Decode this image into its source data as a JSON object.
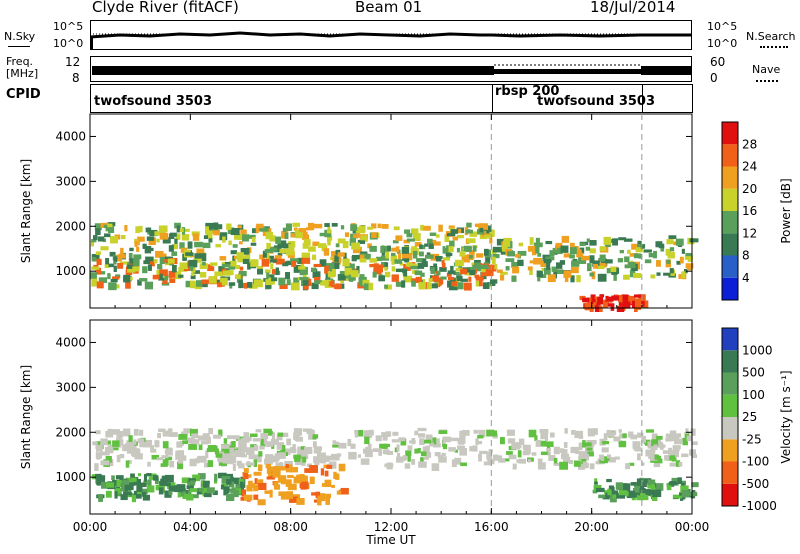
{
  "header": {
    "station": "Clyde River (fitACF)",
    "beam": "Beam 01",
    "date": "18/Jul/2014"
  },
  "strip_labels": {
    "nsky": "N.Sky",
    "nsky_ticks": [
      "10^5",
      "10^0"
    ],
    "nsearch": "N.Search",
    "nsearch_ticks": [
      "10^5",
      "10^0"
    ],
    "freq_line1": "Freq.",
    "freq_line2": "[MHz]",
    "freq_ticks": [
      "12",
      "8"
    ],
    "nave": "Nave",
    "nave_ticks": [
      "60",
      "0"
    ],
    "cpid": "CPID"
  },
  "cpid_segments": [
    {
      "name": "twofsound 3503",
      "start_hour": 0,
      "end_hour": 16
    },
    {
      "name": "rbsp 200",
      "start_hour": 16,
      "end_hour": 22
    },
    {
      "name": "twofsound 3503",
      "start_hour": 16,
      "end_hour": 22
    }
  ],
  "chart_data": [
    {
      "type": "heatmap",
      "name": "Power",
      "ylabel": "Slant Range [km]",
      "xlabel": "Time UT",
      "x_ticks": [
        "00:00",
        "04:00",
        "08:00",
        "12:00",
        "16:00",
        "20:00",
        "00:00"
      ],
      "xlim_hours": [
        0,
        24
      ],
      "y_ticks": [
        1000,
        2000,
        3000,
        4000
      ],
      "ylim": [
        180,
        4500
      ],
      "colorbar": {
        "label": "Power [dB]",
        "ticks": [
          "4",
          "8",
          "12",
          "16",
          "20",
          "24",
          "28"
        ],
        "colors": [
          "#0a1fd6",
          "#2a5fc8",
          "#3a7a52",
          "#5aa05a",
          "#c8d22a",
          "#f0a020",
          "#f06018",
          "#e01010"
        ]
      },
      "bands": [
        {
          "t0": 0,
          "t1": 16,
          "r0": 1300,
          "r1": 2100,
          "level": "high"
        },
        {
          "t0": 0,
          "t1": 16,
          "r0": 700,
          "r1": 1300,
          "level": "mid"
        },
        {
          "t0": 16,
          "t1": 24,
          "r0": 900,
          "r1": 1800,
          "level": "high"
        },
        {
          "t0": 19.5,
          "t1": 22,
          "r0": 200,
          "r1": 500,
          "level": "max"
        }
      ]
    },
    {
      "type": "heatmap",
      "name": "Velocity",
      "ylabel": "Slant Range [km]",
      "xlabel": "Time UT",
      "x_ticks": [
        "00:00",
        "04:00",
        "08:00",
        "12:00",
        "16:00",
        "20:00",
        "00:00"
      ],
      "xlim_hours": [
        0,
        24
      ],
      "y_ticks": [
        1000,
        2000,
        3000,
        4000
      ],
      "ylim": [
        180,
        4500
      ],
      "colorbar": {
        "label": "Velocity [m s⁻¹]",
        "ticks": [
          "1000",
          "500",
          "100",
          "25",
          "-25",
          "-100",
          "-500",
          "-1000"
        ],
        "colors": [
          "#2040c0",
          "#3a7a52",
          "#5aa05a",
          "#60c040",
          "#c8c8c0",
          "#f0a020",
          "#f06018",
          "#e01010"
        ]
      },
      "bands": [
        {
          "t0": 0,
          "t1": 24,
          "r0": 1300,
          "r1": 2100,
          "level": "grey"
        },
        {
          "t0": 0,
          "t1": 6,
          "r0": 600,
          "r1": 1100,
          "level": "green"
        },
        {
          "t0": 6,
          "t1": 10,
          "r0": 500,
          "r1": 1300,
          "level": "orange"
        },
        {
          "t0": 20,
          "t1": 24,
          "r0": 600,
          "r1": 1000,
          "level": "green"
        }
      ]
    }
  ]
}
